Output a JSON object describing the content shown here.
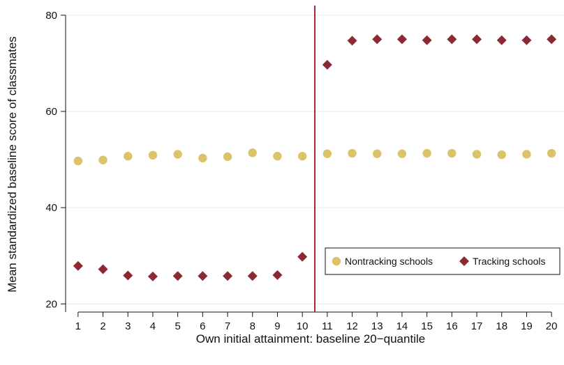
{
  "chart_data": {
    "type": "scatter",
    "title": "",
    "xlabel": "Own initial attainment:  baseline 20−quantile",
    "ylabel": "Mean standardized baseline score of classmates",
    "x": [
      1,
      2,
      3,
      4,
      5,
      6,
      7,
      8,
      9,
      10,
      11,
      12,
      13,
      14,
      15,
      16,
      17,
      18,
      19,
      20
    ],
    "x_tick_labels": [
      "1",
      "2",
      "3",
      "4",
      "5",
      "6",
      "7",
      "8",
      "9",
      "10",
      "11",
      "12",
      "13",
      "14",
      "15",
      "16",
      "17",
      "18",
      "19",
      "20"
    ],
    "xlim": [
      0.5,
      20.5
    ],
    "ylim": [
      18.3,
      82
    ],
    "y_ticks": [
      20,
      40,
      60,
      80
    ],
    "y_tick_labels": [
      "20",
      "40",
      "60",
      "80"
    ],
    "grid": "horizontal",
    "legend_position": "lower-right",
    "cutoff_x": 10.5,
    "cutoff_color": "#b0243a",
    "series": [
      {
        "name": "Nontracking schools",
        "marker": "circle",
        "color": "#dcc36a",
        "values": [
          49.7,
          49.9,
          50.7,
          50.9,
          51.1,
          50.3,
          50.6,
          51.4,
          50.7,
          50.7,
          51.2,
          51.3,
          51.2,
          51.2,
          51.3,
          51.3,
          51.1,
          51.0,
          51.1,
          51.3
        ]
      },
      {
        "name": "Tracking schools",
        "marker": "diamond",
        "color": "#8b2a33",
        "values": [
          27.9,
          27.2,
          25.9,
          25.7,
          25.8,
          25.8,
          25.8,
          25.8,
          26.0,
          29.8,
          69.7,
          74.7,
          75.0,
          75.0,
          74.8,
          75.0,
          75.0,
          74.8,
          74.8,
          75.0
        ]
      }
    ]
  }
}
